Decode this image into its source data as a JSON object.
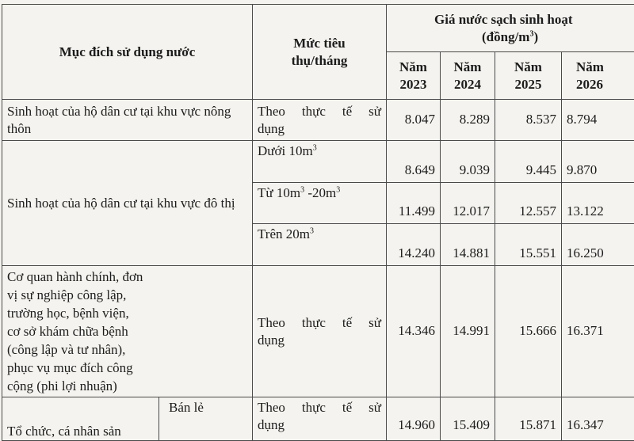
{
  "header": {
    "purpose": "Mục đích sử dụng nước",
    "consumption": "Mức tiêu thụ/tháng",
    "price_title": "Giá nước sạch sinh hoạt",
    "price_unit": "(đồng/m",
    "price_unit_sup": "3",
    "price_unit_end": ")",
    "years": [
      {
        "l1": "Năm",
        "l2": "2023"
      },
      {
        "l1": "Năm",
        "l2": "2024"
      },
      {
        "l1": "Năm",
        "l2": "2025"
      },
      {
        "l1": "Năm",
        "l2": "2026"
      }
    ]
  },
  "rows": {
    "rural": {
      "purpose": "Sinh hoạt của hộ dân cư tại khu vực nông thôn",
      "level_a": "Theo thực tế sử",
      "level_b": "dụng",
      "prices": [
        "8.047",
        "8.289",
        "8.537",
        "8.794"
      ]
    },
    "urban_purpose": "Sinh hoạt của hộ dân cư tại khu vực đô thị",
    "urban1": {
      "level": "Dưới 10m",
      "sup": "3",
      "prices": [
        "8.649",
        "9.039",
        "9.445",
        "9.870"
      ]
    },
    "urban2": {
      "level_a": "Từ 10m",
      "sup1": "3",
      "level_b": " -20m",
      "sup2": "3",
      "prices": [
        "11.499",
        "12.017",
        "12.557",
        "13.122"
      ]
    },
    "urban3": {
      "level": "Trên 20m",
      "sup": "3",
      "prices": [
        "14.240",
        "14.881",
        "15.551",
        "16.250"
      ]
    },
    "public": {
      "purpose": "Cơ quan hành chính, đơn vị sự nghiệp công lập, trường học, bệnh viện, cơ sở khám chữa bệnh (công lập và tư nhân), phục vụ mục đích công cộng (phi lợi nhuận)",
      "level_a": "Theo thực tế sử",
      "level_b": "dụng",
      "prices": [
        "14.346",
        "14.991",
        "15.666",
        "16.371"
      ]
    },
    "business": {
      "purpose": "Tổ chức, cá nhân sản",
      "sub": "Bán lẻ",
      "level_a": "Theo thực tế sử",
      "level_b": "dụng",
      "prices": [
        "14.960",
        "15.409",
        "15.871",
        "16.347"
      ]
    }
  }
}
